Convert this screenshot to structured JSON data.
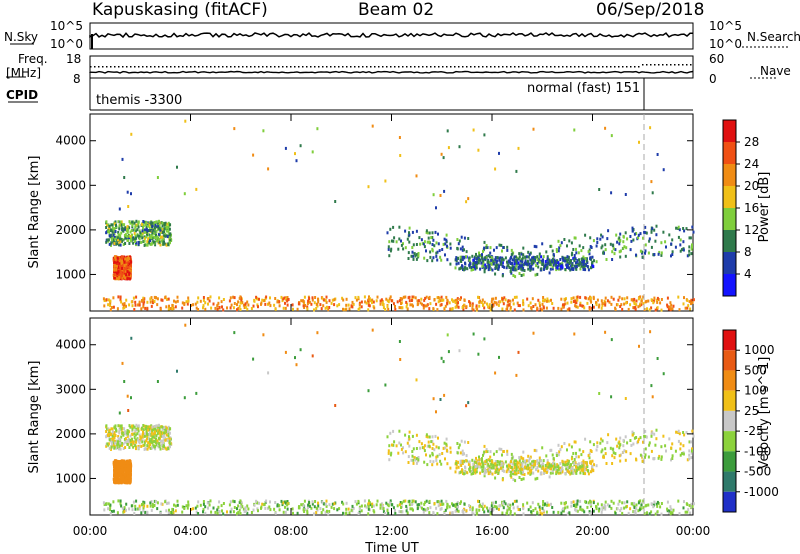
{
  "header": {
    "station": "Kapuskasing (fitACF)",
    "beam": "Beam 02",
    "date": "06/Sep/2018"
  },
  "noise_panel": {
    "left_label": "N.Sky",
    "right_label": "N.Search",
    "left_ticks": [
      "10^5",
      "10^0"
    ],
    "right_ticks": [
      "10^5",
      "10^0"
    ]
  },
  "freq_panel": {
    "left_label_1": "Freq.",
    "left_label_2": "[MHz]",
    "right_label": "Nave",
    "left_ticks": [
      "18",
      "8"
    ],
    "right_ticks": [
      "60",
      "0"
    ]
  },
  "cpid_panel": {
    "label": "CPID",
    "mode_left": "themis -3300",
    "mode_right": "normal (fast) 151"
  },
  "x_axis": {
    "title": "Time UT",
    "ticks": [
      "00:00",
      "04:00",
      "08:00",
      "12:00",
      "16:00",
      "20:00",
      "00:00"
    ]
  },
  "power_panel": {
    "ylabel": "Slant Range [km]",
    "yticks": [
      "1000",
      "2000",
      "3000",
      "4000"
    ],
    "colorbar_title": "Power [dB]",
    "colorbar_ticks": [
      "4",
      "8",
      "12",
      "16",
      "20",
      "24",
      "28"
    ],
    "colors": [
      "#1414ff",
      "#1e3caa",
      "#2f7a4b",
      "#7fce3c",
      "#f0c018",
      "#f08c14",
      "#f05014",
      "#e01010"
    ]
  },
  "velocity_panel": {
    "ylabel": "Slant Range [km]",
    "yticks": [
      "1000",
      "2000",
      "3000",
      "4000"
    ],
    "colorbar_title": "Velocity [m s^-1]",
    "colorbar_ticks": [
      "1000",
      "500",
      "100",
      "25",
      "-25",
      "-100",
      "-500",
      "-1000"
    ],
    "colors": [
      "#2030c8",
      "#2f7a6b",
      "#3c9c3c",
      "#8cd23c",
      "#c8c8c8",
      "#f0c018",
      "#f08c14",
      "#e85a14",
      "#e01010"
    ]
  },
  "chart_data": {
    "type": "heatmap",
    "title": "Kapuskasing (fitACF) Beam 02 06/Sep/2018",
    "xlabel": "Time UT",
    "ylabel": "Slant Range [km]",
    "xlim_hours": [
      0,
      24
    ],
    "ylim_km": [
      180,
      4600
    ],
    "mode_change_hour": 21.9,
    "regions": [
      {
        "name": "early band",
        "t": [
          0.6,
          3.2
        ],
        "r": [
          1650,
          2200
        ],
        "power": 12,
        "velocity": 0
      },
      {
        "name": "early enhancement",
        "t": [
          0.9,
          1.6
        ],
        "r": [
          900,
          1400
        ],
        "power": 26,
        "velocity": -300
      },
      {
        "name": "ground scatter base",
        "t": [
          0.5,
          24
        ],
        "r": [
          200,
          500
        ],
        "power": 22,
        "velocity": 50
      },
      {
        "name": "afternoon band",
        "t": [
          11.8,
          24
        ],
        "r": [
          1400,
          2100
        ],
        "power": 10,
        "velocity": 0
      },
      {
        "name": "afternoon lower band",
        "t": [
          14.5,
          20
        ],
        "r": [
          1100,
          1400
        ],
        "power": 8,
        "velocity": 0
      }
    ]
  }
}
